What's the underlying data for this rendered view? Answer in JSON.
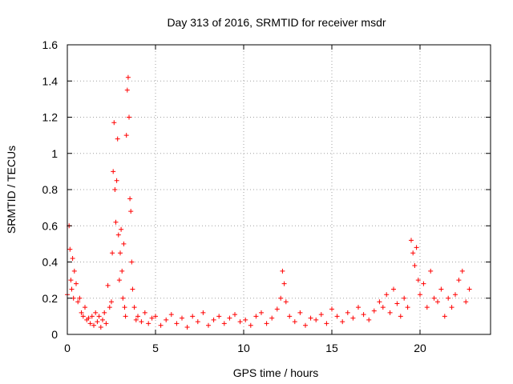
{
  "chart_data": {
    "type": "scatter",
    "title": "Day 313 of 2016, SRMTID for receiver msdr",
    "xlabel": "GPS time / hours",
    "ylabel": "SRMTID / TECUs",
    "xlim": [
      0,
      24
    ],
    "ylim": [
      0,
      1.6
    ],
    "x_ticks": [
      "0",
      "5",
      "10",
      "15",
      "20"
    ],
    "y_ticks": [
      "0",
      "0.2",
      "0.4",
      "0.6",
      "0.8",
      "1",
      "1.2",
      "1.4",
      "1.6"
    ],
    "grid": true,
    "marker": "+",
    "color": "#ff0000",
    "series": [
      {
        "name": "SRMTID",
        "x": [
          0.0,
          0.1,
          0.15,
          0.2,
          0.25,
          0.3,
          0.35,
          0.4,
          0.5,
          0.6,
          0.7,
          0.8,
          0.9,
          1.0,
          1.1,
          1.2,
          1.3,
          1.4,
          1.5,
          1.6,
          1.7,
          1.8,
          1.9,
          2.0,
          2.1,
          2.2,
          2.3,
          2.4,
          2.5,
          2.55,
          2.6,
          2.65,
          2.7,
          2.75,
          2.8,
          2.85,
          2.9,
          2.95,
          3.0,
          3.05,
          3.1,
          3.15,
          3.2,
          3.25,
          3.3,
          3.35,
          3.4,
          3.45,
          3.5,
          3.55,
          3.6,
          3.65,
          3.7,
          3.8,
          3.9,
          4.0,
          4.2,
          4.4,
          4.6,
          4.8,
          5.0,
          5.3,
          5.6,
          5.9,
          6.2,
          6.5,
          6.8,
          7.1,
          7.4,
          7.7,
          8.0,
          8.3,
          8.6,
          8.9,
          9.2,
          9.5,
          9.8,
          10.1,
          10.4,
          10.7,
          11.0,
          11.3,
          11.6,
          11.9,
          12.1,
          12.2,
          12.3,
          12.4,
          12.6,
          12.9,
          13.2,
          13.5,
          13.8,
          14.1,
          14.4,
          14.7,
          15.0,
          15.3,
          15.6,
          15.9,
          16.2,
          16.5,
          16.8,
          17.1,
          17.4,
          17.7,
          17.9,
          18.1,
          18.3,
          18.5,
          18.7,
          18.9,
          19.1,
          19.3,
          19.5,
          19.6,
          19.7,
          19.8,
          19.9,
          20.0,
          20.2,
          20.4,
          20.6,
          20.8,
          21.0,
          21.2,
          21.4,
          21.6,
          21.8,
          22.0,
          22.2,
          22.4,
          22.6,
          22.8
        ],
        "y": [
          0.22,
          0.6,
          0.47,
          0.3,
          0.25,
          0.42,
          0.2,
          0.35,
          0.28,
          0.18,
          0.2,
          0.12,
          0.1,
          0.15,
          0.08,
          0.09,
          0.06,
          0.1,
          0.05,
          0.12,
          0.07,
          0.1,
          0.04,
          0.08,
          0.12,
          0.06,
          0.27,
          0.15,
          0.18,
          0.45,
          0.9,
          1.17,
          0.8,
          0.62,
          0.85,
          1.08,
          0.55,
          0.3,
          0.45,
          0.58,
          0.35,
          0.2,
          0.5,
          0.15,
          0.1,
          1.1,
          1.35,
          1.42,
          1.2,
          0.75,
          0.68,
          0.4,
          0.25,
          0.15,
          0.08,
          0.1,
          0.07,
          0.12,
          0.06,
          0.09,
          0.1,
          0.05,
          0.08,
          0.11,
          0.06,
          0.09,
          0.04,
          0.1,
          0.07,
          0.12,
          0.05,
          0.08,
          0.1,
          0.06,
          0.09,
          0.11,
          0.07,
          0.08,
          0.05,
          0.1,
          0.12,
          0.06,
          0.09,
          0.14,
          0.2,
          0.35,
          0.28,
          0.18,
          0.1,
          0.07,
          0.12,
          0.05,
          0.09,
          0.08,
          0.11,
          0.06,
          0.14,
          0.1,
          0.07,
          0.12,
          0.09,
          0.15,
          0.11,
          0.08,
          0.13,
          0.18,
          0.15,
          0.22,
          0.12,
          0.25,
          0.17,
          0.1,
          0.2,
          0.15,
          0.52,
          0.45,
          0.38,
          0.48,
          0.3,
          0.22,
          0.28,
          0.15,
          0.35,
          0.2,
          0.18,
          0.25,
          0.1,
          0.2,
          0.15,
          0.22,
          0.3,
          0.35,
          0.18,
          0.25
        ]
      }
    ]
  }
}
